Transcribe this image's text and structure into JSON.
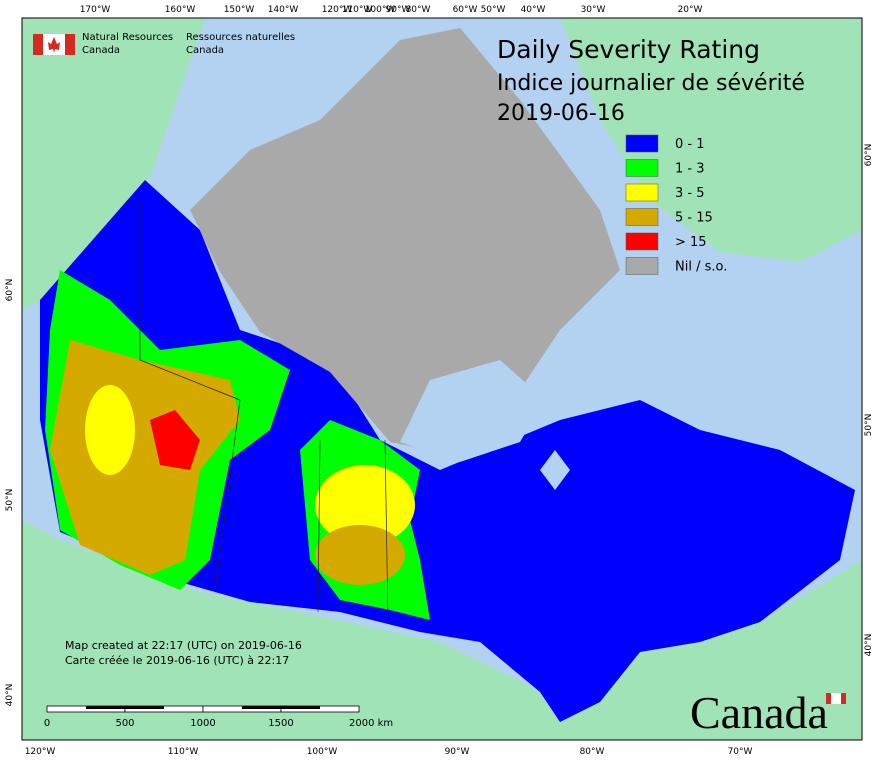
{
  "header": {
    "org_en": "Natural Resources",
    "country_en": "Canada",
    "org_fr": "Ressources naturelles",
    "country_fr": "Canada"
  },
  "title": {
    "line1": "Daily Severity Rating",
    "line2": "Indice journalier de sévérité",
    "date": "2019-06-16"
  },
  "legend": [
    {
      "label": "0 - 1",
      "color": "#0000ff"
    },
    {
      "label": "1 - 3",
      "color": "#00ff00"
    },
    {
      "label": "3 - 5",
      "color": "#ffff00"
    },
    {
      "label": "5 - 15",
      "color": "#d4aa00"
    },
    {
      "label": "> 15",
      "color": "#ff0000"
    },
    {
      "label": "Nil / s.o.",
      "color": "#a9a9a9"
    }
  ],
  "graticule": {
    "top": [
      "170°W",
      "160°W",
      "150°W",
      "140°W",
      "120°W",
      "110°W",
      "100°W",
      "90°W",
      "80°W",
      "60°W",
      "50°W",
      "40°W",
      "30°W",
      "20°W"
    ],
    "bottom": [
      "120°W",
      "110°W",
      "100°W",
      "90°W",
      "80°W",
      "70°W"
    ],
    "left": [
      "60°N",
      "50°N",
      "40°N"
    ],
    "right": [
      "60°N",
      "50°N",
      "40°N"
    ]
  },
  "credits": {
    "created_en": "Map created at 22:17 (UTC) on 2019-06-16",
    "created_fr": "Carte créée le 2019-06-16 (UTC) à 22:17"
  },
  "scale": [
    "0",
    "500",
    "1000",
    "1500",
    "2000 km"
  ],
  "wordmark": "Canada"
}
